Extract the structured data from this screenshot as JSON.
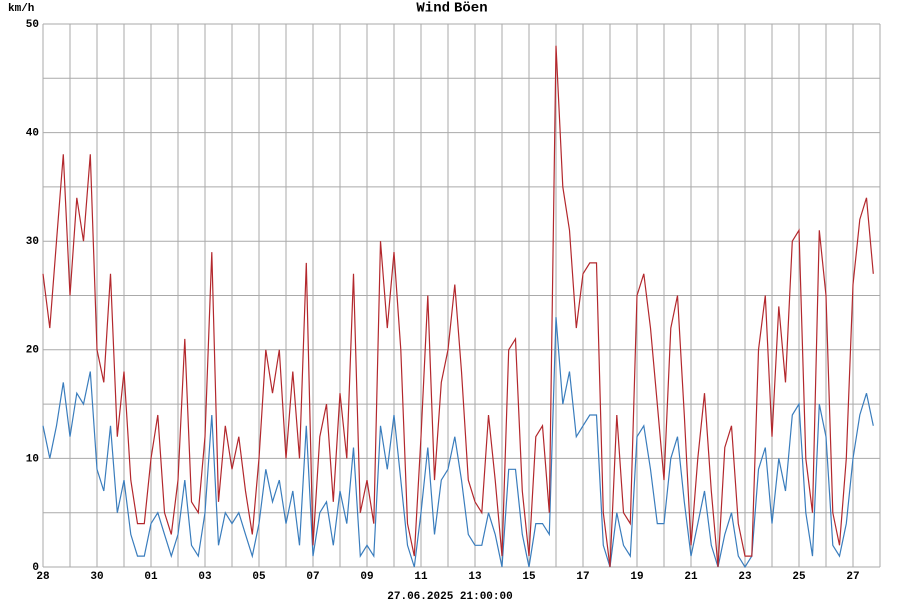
{
  "chart_data": {
    "type": "line",
    "y_label": "km/h",
    "footer": "27.06.2025 21:00:00",
    "x": [
      0,
      0.25,
      0.5,
      0.75,
      1,
      1.25,
      1.5,
      1.75,
      2,
      2.25,
      2.5,
      2.75,
      3,
      3.25,
      3.5,
      3.75,
      4,
      4.25,
      4.5,
      4.75,
      5,
      5.25,
      5.5,
      5.75,
      6,
      6.25,
      6.5,
      6.75,
      7,
      7.25,
      7.5,
      7.75,
      8,
      8.25,
      8.5,
      8.75,
      9,
      9.25,
      9.5,
      9.75,
      10,
      10.25,
      10.5,
      10.75,
      11,
      11.25,
      11.5,
      11.75,
      12,
      12.25,
      12.5,
      12.75,
      13,
      13.25,
      13.5,
      13.75,
      14,
      14.25,
      14.5,
      14.75,
      15,
      15.25,
      15.5,
      15.75,
      16,
      16.25,
      16.5,
      16.75,
      17,
      17.25,
      17.5,
      17.75,
      18,
      18.25,
      18.5,
      18.75,
      19,
      19.25,
      19.5,
      19.75,
      20,
      20.25,
      20.5,
      20.75,
      21,
      21.25,
      21.5,
      21.75,
      22,
      22.25,
      22.5,
      22.75,
      23,
      23.25,
      23.5,
      23.75,
      24,
      24.25,
      24.5,
      24.75,
      25,
      25.25,
      25.5,
      25.75,
      26,
      26.25,
      26.5,
      26.75,
      27,
      27.25,
      27.5,
      27.75,
      28,
      28.25,
      28.5,
      28.75,
      29,
      29.25,
      29.5,
      29.75,
      30,
      30.25,
      30.5,
      30.75
    ],
    "series": [
      {
        "name": "Wind",
        "color": "#3a7dbd",
        "values": [
          13,
          10,
          13,
          17,
          12,
          16,
          15,
          18,
          9,
          7,
          13,
          5,
          8,
          3,
          1,
          1,
          4,
          5,
          3,
          1,
          3,
          8,
          2,
          1,
          5,
          14,
          2,
          5,
          4,
          5,
          3,
          1,
          4,
          9,
          6,
          8,
          4,
          7,
          2,
          13,
          1,
          5,
          6,
          2,
          7,
          4,
          11,
          1,
          2,
          1,
          13,
          9,
          14,
          8,
          2,
          0,
          5,
          11,
          3,
          8,
          9,
          12,
          8,
          3,
          2,
          2,
          5,
          3,
          0,
          9,
          9,
          3,
          0,
          4,
          4,
          3,
          23,
          15,
          18,
          12,
          13,
          14,
          14,
          2,
          0,
          5,
          2,
          1,
          12,
          13,
          9,
          4,
          4,
          10,
          12,
          6,
          1,
          4,
          7,
          2,
          0,
          3,
          5,
          1,
          0,
          1,
          9,
          11,
          4,
          10,
          7,
          14,
          15,
          5,
          1,
          15,
          12,
          2,
          1,
          4,
          10,
          14,
          16,
          13
        ]
      },
      {
        "name": "Böen",
        "color": "#b3282d",
        "values": [
          27,
          22,
          30,
          38,
          25,
          34,
          30,
          38,
          20,
          17,
          27,
          12,
          18,
          8,
          4,
          4,
          10,
          14,
          5,
          3,
          8,
          21,
          6,
          5,
          12,
          29,
          6,
          13,
          9,
          12,
          7,
          3,
          10,
          20,
          16,
          20,
          10,
          18,
          10,
          28,
          2,
          12,
          15,
          6,
          16,
          10,
          27,
          5,
          8,
          4,
          30,
          22,
          29,
          20,
          4,
          1,
          12,
          25,
          8,
          17,
          20,
          26,
          18,
          8,
          6,
          5,
          14,
          8,
          1,
          20,
          21,
          7,
          1,
          12,
          13,
          5,
          48,
          35,
          31,
          22,
          27,
          28,
          28,
          5,
          0,
          14,
          5,
          4,
          25,
          27,
          22,
          15,
          8,
          22,
          25,
          14,
          2,
          10,
          16,
          7,
          0,
          11,
          13,
          4,
          1,
          1,
          20,
          25,
          12,
          24,
          17,
          30,
          31,
          10,
          5,
          31,
          25,
          5,
          2,
          10,
          26,
          32,
          34,
          27
        ]
      }
    ],
    "xlim": [
      0,
      31
    ],
    "xticks": [
      {
        "value": 0,
        "label": "28"
      },
      {
        "value": 2,
        "label": "30"
      },
      {
        "value": 4,
        "label": "01"
      },
      {
        "value": 6,
        "label": "03"
      },
      {
        "value": 8,
        "label": "05"
      },
      {
        "value": 10,
        "label": "07"
      },
      {
        "value": 12,
        "label": "09"
      },
      {
        "value": 14,
        "label": "11"
      },
      {
        "value": 16,
        "label": "13"
      },
      {
        "value": 18,
        "label": "15"
      },
      {
        "value": 20,
        "label": "17"
      },
      {
        "value": 22,
        "label": "19"
      },
      {
        "value": 24,
        "label": "21"
      },
      {
        "value": 26,
        "label": "23"
      },
      {
        "value": 28,
        "label": "25"
      },
      {
        "value": 30,
        "label": "27"
      }
    ],
    "x_minor_grid": [
      1,
      3,
      5,
      7,
      9,
      11,
      13,
      15,
      17,
      19,
      21,
      23,
      25,
      27,
      29,
      31
    ],
    "ylim": [
      0,
      50
    ],
    "yticks": [
      0,
      10,
      20,
      30,
      40,
      50
    ],
    "y_minor_grid": [
      5,
      15,
      25,
      35,
      45
    ],
    "grid": true
  }
}
